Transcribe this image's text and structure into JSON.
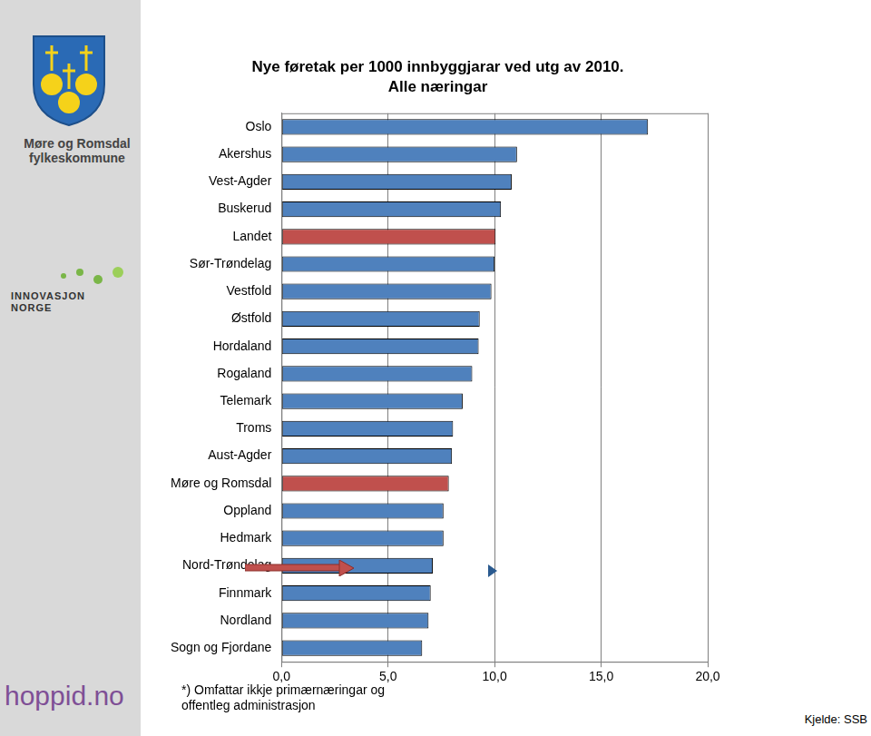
{
  "chart_data": {
    "type": "bar",
    "orientation": "horizontal",
    "title": "Nye føretak per 1000 innbyggjarar ved utg av 2010.",
    "subtitle": "Alle næringar",
    "categories": [
      "Oslo",
      "Akershus",
      "Vest-Agder",
      "Buskerud",
      "Landet",
      "Sør-Trøndelag",
      "Vestfold",
      "Østfold",
      "Hordaland",
      "Rogaland",
      "Telemark",
      "Troms",
      "Aust-Agder",
      "Møre og Romsdal",
      "Oppland",
      "Hedmark",
      "Nord-Trøndelag",
      "Finnmark",
      "Nordland",
      "Sogn og Fjordane"
    ],
    "values": [
      17.2,
      11.05,
      10.8,
      10.3,
      10.05,
      10.0,
      9.85,
      9.3,
      9.25,
      8.95,
      8.5,
      8.05,
      8.0,
      7.85,
      7.6,
      7.6,
      7.1,
      7.0,
      6.9,
      6.6
    ],
    "colors": [
      "#4f81bd",
      "#4f81bd",
      "#4f81bd",
      "#4f81bd",
      "#c0504d",
      "#4f81bd",
      "#4f81bd",
      "#4f81bd",
      "#4f81bd",
      "#4f81bd",
      "#4f81bd",
      "#4f81bd",
      "#4f81bd",
      "#c0504d",
      "#4f81bd",
      "#4f81bd",
      "#4f81bd",
      "#4f81bd",
      "#4f81bd",
      "#4f81bd"
    ],
    "xlim": [
      0,
      20
    ],
    "xticks": [
      {
        "value": 0,
        "label": "0,0"
      },
      {
        "value": 5,
        "label": "5,0"
      },
      {
        "value": 10,
        "label": "10,0"
      },
      {
        "value": 15,
        "label": "15,0"
      },
      {
        "value": 20,
        "label": "20,0"
      }
    ],
    "grid": true,
    "footnote": "*) Omfattar ikkje primærnæringar og offentleg administrasjon",
    "source": "Kjelde: SSB"
  },
  "logos": {
    "fylke": [
      "Møre og Romsdal",
      "fylkeskommune"
    ],
    "innovasjon": [
      "INNOVASJON",
      "NORGE"
    ],
    "hoppid": "hoppid.no"
  }
}
